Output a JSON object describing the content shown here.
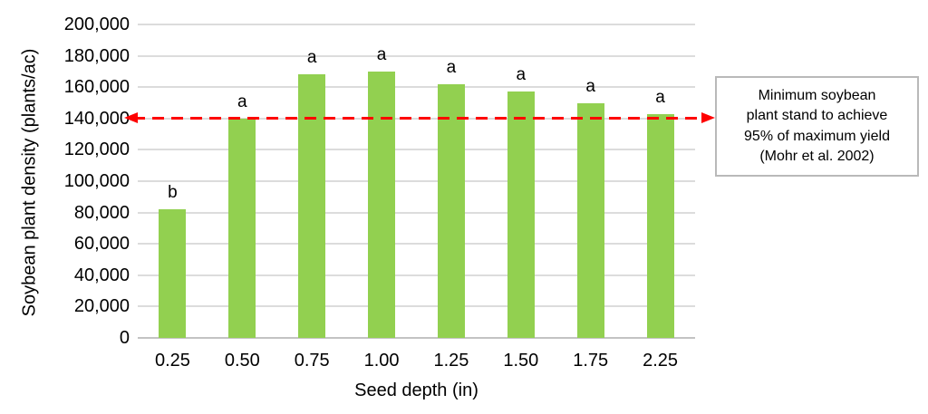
{
  "chart_data": {
    "type": "bar",
    "title": "",
    "xlabel": "Seed depth (in)",
    "ylabel": "Soybean plant density (plants/ac)",
    "categories": [
      "0.25",
      "0.50",
      "0.75",
      "1.00",
      "1.25",
      "1.50",
      "1.75",
      "2.25"
    ],
    "values": [
      82000,
      140000,
      168000,
      170000,
      162000,
      157000,
      150000,
      143000
    ],
    "bar_labels": [
      "b",
      "a",
      "a",
      "a",
      "a",
      "a",
      "a",
      "a"
    ],
    "ylim": [
      0,
      200000
    ],
    "ytick_step": 20000,
    "ytick_labels": [
      "0",
      "20,000",
      "40,000",
      "60,000",
      "80,000",
      "100,000",
      "120,000",
      "140,000",
      "160,000",
      "180,000",
      "200,000"
    ],
    "grid": true,
    "legend": "none",
    "bar_color": "#92d050",
    "gridline_color": "#dcdcdc",
    "reference_line": {
      "value": 140000,
      "color": "#fe0000",
      "style": "dashed",
      "arrows": "both",
      "label": "Minimum soybean\nplant stand to achieve\n95% of maximum yield\n(Mohr et al. 2002)"
    }
  }
}
